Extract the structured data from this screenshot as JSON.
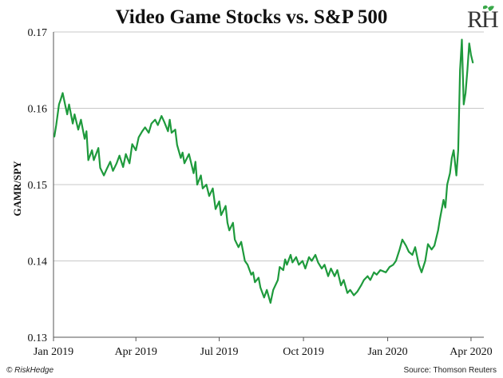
{
  "chart_data": {
    "type": "line",
    "title": "Video Game Stocks vs. S&P 500",
    "xlabel": "",
    "ylabel": "GAMR/SPY",
    "ylim": [
      0.13,
      0.17
    ],
    "yticks": [
      "0.13",
      "0.14",
      "0.15",
      "0.16",
      "0.17"
    ],
    "xlim": [
      "2019-01-01",
      "2020-04-15"
    ],
    "xticks": [
      {
        "label": "Jan 2019",
        "date": "2019-01-01"
      },
      {
        "label": "Apr 2019",
        "date": "2019-04-01"
      },
      {
        "label": "Jul 2019",
        "date": "2019-07-01"
      },
      {
        "label": "Oct 2019",
        "date": "2019-10-01"
      },
      {
        "label": "Jan 2020",
        "date": "2020-01-01"
      },
      {
        "label": "Apr 2020",
        "date": "2020-04-01"
      }
    ],
    "grid": "horizontal",
    "line_color": "#1e9a3c",
    "series": [
      {
        "name": "",
        "points": [
          [
            "2019-01-02",
            0.1563
          ],
          [
            "2019-01-04",
            0.1578
          ],
          [
            "2019-01-07",
            0.1605
          ],
          [
            "2019-01-09",
            0.1612
          ],
          [
            "2019-01-11",
            0.162
          ],
          [
            "2019-01-14",
            0.1603
          ],
          [
            "2019-01-16",
            0.1592
          ],
          [
            "2019-01-18",
            0.1605
          ],
          [
            "2019-01-22",
            0.158
          ],
          [
            "2019-01-24",
            0.1592
          ],
          [
            "2019-01-28",
            0.1572
          ],
          [
            "2019-01-31",
            0.1585
          ],
          [
            "2019-02-04",
            0.156
          ],
          [
            "2019-02-06",
            0.157
          ],
          [
            "2019-02-08",
            0.1532
          ],
          [
            "2019-02-12",
            0.1545
          ],
          [
            "2019-02-14",
            0.1532
          ],
          [
            "2019-02-19",
            0.1548
          ],
          [
            "2019-02-21",
            0.1522
          ],
          [
            "2019-02-25",
            0.1512
          ],
          [
            "2019-02-28",
            0.152
          ],
          [
            "2019-03-04",
            0.153
          ],
          [
            "2019-03-07",
            0.1518
          ],
          [
            "2019-03-11",
            0.1528
          ],
          [
            "2019-03-14",
            0.1538
          ],
          [
            "2019-03-18",
            0.1523
          ],
          [
            "2019-03-21",
            0.154
          ],
          [
            "2019-03-25",
            0.1528
          ],
          [
            "2019-03-28",
            0.1553
          ],
          [
            "2019-04-01",
            0.1545
          ],
          [
            "2019-04-04",
            0.1562
          ],
          [
            "2019-04-08",
            0.157
          ],
          [
            "2019-04-11",
            0.1575
          ],
          [
            "2019-04-15",
            0.1568
          ],
          [
            "2019-04-18",
            0.158
          ],
          [
            "2019-04-22",
            0.1585
          ],
          [
            "2019-04-25",
            0.1578
          ],
          [
            "2019-04-29",
            0.159
          ],
          [
            "2019-05-02",
            0.1582
          ],
          [
            "2019-05-06",
            0.157
          ],
          [
            "2019-05-08",
            0.1585
          ],
          [
            "2019-05-10",
            0.1568
          ],
          [
            "2019-05-14",
            0.1572
          ],
          [
            "2019-05-16",
            0.1552
          ],
          [
            "2019-05-20",
            0.1535
          ],
          [
            "2019-05-22",
            0.1542
          ],
          [
            "2019-05-24",
            0.1528
          ],
          [
            "2019-05-29",
            0.154
          ],
          [
            "2019-06-03",
            0.1515
          ],
          [
            "2019-06-05",
            0.153
          ],
          [
            "2019-06-07",
            0.15
          ],
          [
            "2019-06-11",
            0.1512
          ],
          [
            "2019-06-13",
            0.1495
          ],
          [
            "2019-06-17",
            0.15
          ],
          [
            "2019-06-20",
            0.1485
          ],
          [
            "2019-06-24",
            0.1495
          ],
          [
            "2019-06-27",
            0.1468
          ],
          [
            "2019-07-01",
            0.1478
          ],
          [
            "2019-07-03",
            0.146
          ],
          [
            "2019-07-08",
            0.1472
          ],
          [
            "2019-07-10",
            0.145
          ],
          [
            "2019-07-12",
            0.144
          ],
          [
            "2019-07-16",
            0.145
          ],
          [
            "2019-07-18",
            0.1428
          ],
          [
            "2019-07-22",
            0.1418
          ],
          [
            "2019-07-25",
            0.1425
          ],
          [
            "2019-07-29",
            0.14
          ],
          [
            "2019-08-01",
            0.1395
          ],
          [
            "2019-08-05",
            0.1382
          ],
          [
            "2019-08-07",
            0.1385
          ],
          [
            "2019-08-09",
            0.1372
          ],
          [
            "2019-08-13",
            0.1378
          ],
          [
            "2019-08-15",
            0.1365
          ],
          [
            "2019-08-19",
            0.1352
          ],
          [
            "2019-08-22",
            0.1362
          ],
          [
            "2019-08-26",
            0.1345
          ],
          [
            "2019-08-29",
            0.1362
          ],
          [
            "2019-09-03",
            0.1375
          ],
          [
            "2019-09-05",
            0.1392
          ],
          [
            "2019-09-09",
            0.1388
          ],
          [
            "2019-09-11",
            0.1402
          ],
          [
            "2019-09-13",
            0.1395
          ],
          [
            "2019-09-17",
            0.1408
          ],
          [
            "2019-09-19",
            0.1398
          ],
          [
            "2019-09-23",
            0.1405
          ],
          [
            "2019-09-26",
            0.1395
          ],
          [
            "2019-09-30",
            0.14
          ],
          [
            "2019-10-03",
            0.139
          ],
          [
            "2019-10-07",
            0.1405
          ],
          [
            "2019-10-10",
            0.14
          ],
          [
            "2019-10-14",
            0.1408
          ],
          [
            "2019-10-17",
            0.1398
          ],
          [
            "2019-10-21",
            0.139
          ],
          [
            "2019-10-24",
            0.1395
          ],
          [
            "2019-10-28",
            0.138
          ],
          [
            "2019-10-31",
            0.139
          ],
          [
            "2019-11-04",
            0.138
          ],
          [
            "2019-11-07",
            0.1388
          ],
          [
            "2019-11-11",
            0.1368
          ],
          [
            "2019-11-14",
            0.1375
          ],
          [
            "2019-11-18",
            0.1358
          ],
          [
            "2019-11-21",
            0.1362
          ],
          [
            "2019-11-25",
            0.1355
          ],
          [
            "2019-11-29",
            0.136
          ],
          [
            "2019-12-03",
            0.1368
          ],
          [
            "2019-12-06",
            0.1375
          ],
          [
            "2019-12-10",
            0.138
          ],
          [
            "2019-12-13",
            0.1375
          ],
          [
            "2019-12-17",
            0.1385
          ],
          [
            "2019-12-20",
            0.1382
          ],
          [
            "2019-12-24",
            0.1388
          ],
          [
            "2019-12-30",
            0.1385
          ],
          [
            "2020-01-03",
            0.1392
          ],
          [
            "2020-01-07",
            0.1395
          ],
          [
            "2020-01-10",
            0.14
          ],
          [
            "2020-01-14",
            0.1415
          ],
          [
            "2020-01-17",
            0.1428
          ],
          [
            "2020-01-21",
            0.142
          ],
          [
            "2020-01-24",
            0.1412
          ],
          [
            "2020-01-28",
            0.1408
          ],
          [
            "2020-01-31",
            0.1418
          ],
          [
            "2020-02-04",
            0.1395
          ],
          [
            "2020-02-07",
            0.1385
          ],
          [
            "2020-02-11",
            0.14
          ],
          [
            "2020-02-14",
            0.1422
          ],
          [
            "2020-02-18",
            0.1415
          ],
          [
            "2020-02-21",
            0.142
          ],
          [
            "2020-02-25",
            0.144
          ],
          [
            "2020-02-27",
            0.1455
          ],
          [
            "2020-03-02",
            0.148
          ],
          [
            "2020-03-04",
            0.147
          ],
          [
            "2020-03-06",
            0.15
          ],
          [
            "2020-03-09",
            0.1515
          ],
          [
            "2020-03-11",
            0.1535
          ],
          [
            "2020-03-13",
            0.1545
          ],
          [
            "2020-03-16",
            0.1512
          ],
          [
            "2020-03-18",
            0.1545
          ],
          [
            "2020-03-20",
            0.165
          ],
          [
            "2020-03-22",
            0.169
          ],
          [
            "2020-03-24",
            0.1605
          ],
          [
            "2020-03-26",
            0.162
          ],
          [
            "2020-03-28",
            0.165
          ],
          [
            "2020-03-30",
            0.1685
          ],
          [
            "2020-04-01",
            0.167
          ],
          [
            "2020-04-03",
            0.166
          ]
        ]
      }
    ],
    "source": "Source: Thomson Reuters",
    "brand": "© RiskHedge",
    "logo_text": "RH"
  }
}
